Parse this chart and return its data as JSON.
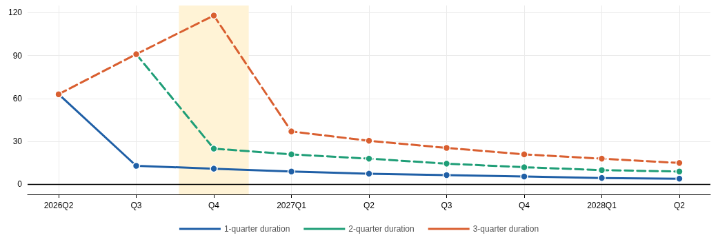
{
  "chart_data": {
    "type": "line",
    "categories": [
      "2026Q2",
      "Q3",
      "Q4",
      "2027Q1",
      "Q2",
      "Q3",
      "Q4",
      "2028Q1",
      "Q2"
    ],
    "series": [
      {
        "name": "1-quarter duration",
        "color": "#1f5fa6",
        "line_style": "solid",
        "values": [
          63,
          13,
          11,
          9,
          7.5,
          6.5,
          5.5,
          4.5,
          4
        ]
      },
      {
        "name": "2-quarter duration",
        "color": "#1f9e77",
        "line_style": "dashed",
        "values": [
          null,
          91,
          25,
          21,
          18,
          14.5,
          12,
          10,
          9
        ]
      },
      {
        "name": "3-quarter duration",
        "color": "#d95f30",
        "line_style": "dashed",
        "values": [
          63,
          91,
          118,
          37,
          30.5,
          25.5,
          21,
          18,
          15
        ]
      }
    ],
    "ylim": [
      -7,
      125
    ],
    "yticks": [
      0,
      30,
      60,
      90,
      120
    ],
    "grid": true,
    "legend": "bottom",
    "marker": "circle",
    "ref_lines": [
      {
        "axis": "y",
        "value": 0,
        "color": "#000000"
      }
    ],
    "bands": [
      {
        "axis": "x",
        "from": "Q4",
        "to": "Q4",
        "color": "#fff3d6"
      }
    ]
  }
}
